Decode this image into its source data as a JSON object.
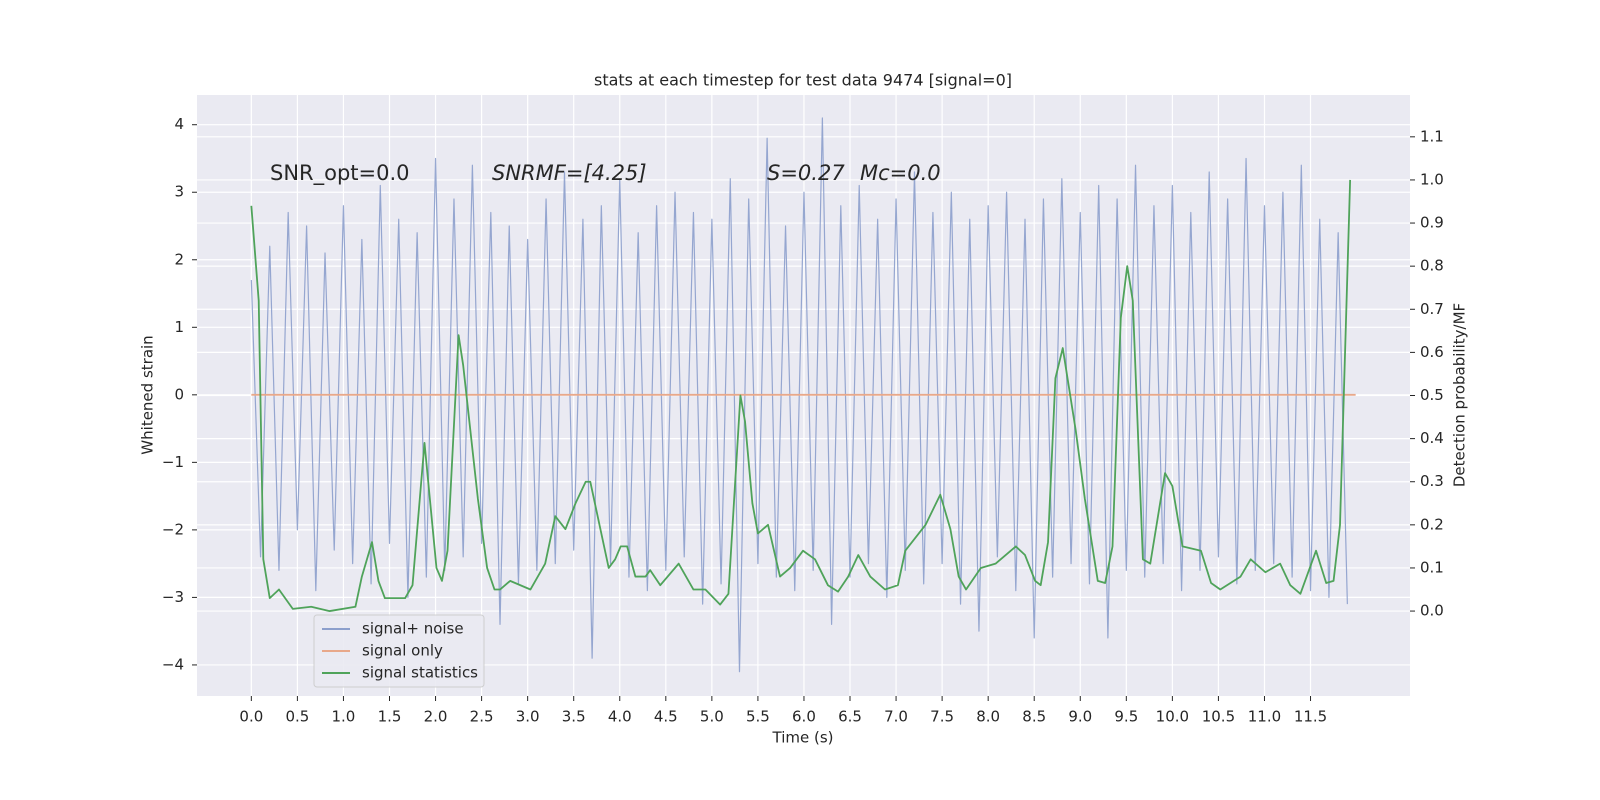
{
  "chart_data": {
    "type": "line",
    "title": "stats at each timestep for test data 9474 [signal=0]",
    "xlabel": "Time (s)",
    "ylabel": "Whitened strain",
    "y2label": "Detection probability/MF",
    "annotations": [
      "SNR_opt=0.0",
      "SNRMF=[4.25]",
      "S=0.27",
      "Mc=0.0"
    ],
    "xlim": [
      -0.59,
      12.58
    ],
    "ylim": [
      -4.46,
      4.44
    ],
    "y2lim": [
      -0.197,
      1.197
    ],
    "xticks": [
      {
        "value": 0,
        "label": "0.0"
      },
      {
        "value": 0.5,
        "label": "0.5"
      },
      {
        "value": 1,
        "label": "1.0"
      },
      {
        "value": 1.5,
        "label": "1.5"
      },
      {
        "value": 2,
        "label": "2.0"
      },
      {
        "value": 2.5,
        "label": "2.5"
      },
      {
        "value": 3,
        "label": "3.0"
      },
      {
        "value": 3.5,
        "label": "3.5"
      },
      {
        "value": 4,
        "label": "4.0"
      },
      {
        "value": 4.5,
        "label": "4.5"
      },
      {
        "value": 5,
        "label": "5.0"
      },
      {
        "value": 5.5,
        "label": "5.5"
      },
      {
        "value": 6,
        "label": "6.0"
      },
      {
        "value": 6.5,
        "label": "6.5"
      },
      {
        "value": 7,
        "label": "7.0"
      },
      {
        "value": 7.5,
        "label": "7.5"
      },
      {
        "value": 8,
        "label": "8.0"
      },
      {
        "value": 8.5,
        "label": "8.5"
      },
      {
        "value": 9,
        "label": "9.0"
      },
      {
        "value": 9.5,
        "label": "9.5"
      },
      {
        "value": 10,
        "label": "10.0"
      },
      {
        "value": 10.5,
        "label": "10.5"
      },
      {
        "value": 11,
        "label": "11.0"
      },
      {
        "value": 11.5,
        "label": "11.5"
      }
    ],
    "yticks": [
      {
        "value": -4,
        "label": "−4"
      },
      {
        "value": -3,
        "label": "−3"
      },
      {
        "value": -2,
        "label": "−2"
      },
      {
        "value": -1,
        "label": "−1"
      },
      0,
      1,
      2,
      3,
      4
    ],
    "y2ticks": [
      {
        "value": 0,
        "label": "0.0"
      },
      0.1,
      0.2,
      0.3,
      0.4,
      0.5,
      0.6,
      0.7,
      0.8,
      0.9,
      {
        "value": 1,
        "label": "1.0"
      },
      1.1
    ],
    "grid": true,
    "legend": "lower left",
    "series": [
      {
        "name": "signal+ noise",
        "color": "#8c9fcc",
        "x": [
          0,
          0.1,
          0.2,
          0.3,
          0.4,
          0.5,
          0.6,
          0.7,
          0.8,
          0.9,
          1,
          1.1,
          1.2,
          1.3,
          1.4,
          1.5,
          1.6,
          1.7,
          1.8,
          1.9,
          2,
          2.1,
          2.2,
          2.3,
          2.4,
          2.5,
          2.6,
          2.7,
          2.8,
          2.9,
          3,
          3.1,
          3.2,
          3.3,
          3.4,
          3.5,
          3.6,
          3.7,
          3.8,
          3.9,
          4,
          4.1,
          4.2,
          4.3,
          4.4,
          4.5,
          4.6,
          4.7,
          4.8,
          4.9,
          5,
          5.1,
          5.2,
          5.3,
          5.4,
          5.5,
          5.6,
          5.7,
          5.8,
          5.9,
          6,
          6.1,
          6.2,
          6.3,
          6.4,
          6.5,
          6.6,
          6.7,
          6.8,
          6.9,
          7,
          7.1,
          7.2,
          7.3,
          7.4,
          7.5,
          7.6,
          7.7,
          7.8,
          7.9,
          8,
          8.1,
          8.2,
          8.3,
          8.4,
          8.5,
          8.6,
          8.7,
          8.8,
          8.9,
          9,
          9.1,
          9.2,
          9.3,
          9.4,
          9.5,
          9.6,
          9.7,
          9.8,
          9.9,
          10,
          10.1,
          10.2,
          10.3,
          10.4,
          10.5,
          10.6,
          10.7,
          10.8,
          10.9,
          11,
          11.1,
          11.2,
          11.3,
          11.4,
          11.5,
          11.6,
          11.7,
          11.8,
          11.9
        ],
        "values": [
          1.7,
          -2.4,
          2.2,
          -2.6,
          2.7,
          -2.0,
          2.5,
          -2.9,
          2.1,
          -2.3,
          2.8,
          -2.5,
          2.3,
          -2.8,
          3.1,
          -2.2,
          2.6,
          -3.0,
          2.4,
          -2.7,
          3.5,
          -2.6,
          2.9,
          -2.4,
          3.4,
          -2.2,
          2.7,
          -3.4,
          2.5,
          -2.8,
          2.3,
          -2.6,
          2.9,
          -2.5,
          3.3,
          -2.3,
          2.6,
          -3.9,
          2.8,
          -2.5,
          3.2,
          -2.7,
          2.4,
          -2.9,
          2.8,
          -2.6,
          3.0,
          -2.4,
          2.7,
          -3.1,
          2.6,
          -2.8,
          3.2,
          -4.1,
          2.9,
          -2.5,
          3.8,
          -2.7,
          2.5,
          -2.9,
          3.0,
          -2.6,
          4.1,
          -3.4,
          2.8,
          -2.7,
          3.1,
          -2.5,
          2.6,
          -3.0,
          2.9,
          -2.6,
          3.3,
          -2.8,
          2.7,
          -2.5,
          3.0,
          -3.1,
          2.6,
          -3.5,
          2.8,
          -2.4,
          3.0,
          -2.9,
          2.6,
          -3.6,
          2.9,
          -2.7,
          3.2,
          -2.5,
          2.7,
          -2.8,
          3.1,
          -3.6,
          2.9,
          -2.6,
          3.4,
          -2.7,
          2.8,
          -2.5,
          3.1,
          -2.9,
          2.7,
          -2.6,
          3.3,
          -2.4,
          2.9,
          -2.8,
          3.5,
          -2.6,
          2.8,
          -2.5,
          3.0,
          -2.7,
          3.4,
          -2.9,
          2.6,
          -3.0,
          2.4,
          -3.1
        ]
      },
      {
        "name": "signal only",
        "color": "#e8a88a",
        "x": [
          0,
          11.99
        ],
        "values": [
          0,
          0
        ]
      },
      {
        "name": "signal statistics",
        "color": "#4fa35a",
        "axis": "y2",
        "x": [
          0,
          0.08,
          0.13,
          0.2,
          0.3,
          0.45,
          0.65,
          0.85,
          1.13,
          1.2,
          1.31,
          1.38,
          1.45,
          1.67,
          1.75,
          1.88,
          2.01,
          2.07,
          2.13,
          2.25,
          2.3,
          2.46,
          2.56,
          2.64,
          2.7,
          2.81,
          3.03,
          3.19,
          3.3,
          3.41,
          3.52,
          3.63,
          3.68,
          3.79,
          3.88,
          3.95,
          4.01,
          4.08,
          4.17,
          4.28,
          4.33,
          4.44,
          4.64,
          4.8,
          4.93,
          5.09,
          5.18,
          5.31,
          5.36,
          5.44,
          5.5,
          5.61,
          5.74,
          5.85,
          5.99,
          6.12,
          6.26,
          6.37,
          6.48,
          6.59,
          6.72,
          6.88,
          7.02,
          7.1,
          7.32,
          7.48,
          7.59,
          7.68,
          7.76,
          7.92,
          8.08,
          8.19,
          8.3,
          8.4,
          8.51,
          8.57,
          8.65,
          8.73,
          8.81,
          8.95,
          9.05,
          9.19,
          9.27,
          9.35,
          9.44,
          9.51,
          9.57,
          9.68,
          9.76,
          9.92,
          10.0,
          10.11,
          10.31,
          10.42,
          10.52,
          10.74,
          10.85,
          11.01,
          11.17,
          11.28,
          11.39,
          11.56,
          11.67,
          11.75,
          11.82,
          11.93
        ],
        "values": [
          0.94,
          0.72,
          0.12,
          0.03,
          0.05,
          0.005,
          0.01,
          0.0,
          0.01,
          0.08,
          0.16,
          0.07,
          0.03,
          0.03,
          0.06,
          0.39,
          0.1,
          0.07,
          0.14,
          0.64,
          0.57,
          0.26,
          0.1,
          0.05,
          0.05,
          0.07,
          0.05,
          0.11,
          0.22,
          0.19,
          0.25,
          0.3,
          0.3,
          0.19,
          0.1,
          0.12,
          0.15,
          0.15,
          0.08,
          0.08,
          0.095,
          0.06,
          0.11,
          0.05,
          0.05,
          0.015,
          0.04,
          0.5,
          0.44,
          0.25,
          0.18,
          0.2,
          0.08,
          0.1,
          0.14,
          0.12,
          0.06,
          0.045,
          0.08,
          0.13,
          0.08,
          0.05,
          0.06,
          0.14,
          0.2,
          0.27,
          0.19,
          0.08,
          0.05,
          0.1,
          0.11,
          0.13,
          0.15,
          0.13,
          0.07,
          0.06,
          0.16,
          0.54,
          0.61,
          0.42,
          0.26,
          0.07,
          0.065,
          0.15,
          0.68,
          0.8,
          0.72,
          0.12,
          0.11,
          0.32,
          0.29,
          0.15,
          0.14,
          0.065,
          0.05,
          0.08,
          0.12,
          0.09,
          0.11,
          0.06,
          0.04,
          0.14,
          0.065,
          0.07,
          0.2,
          1.0
        ]
      }
    ]
  }
}
